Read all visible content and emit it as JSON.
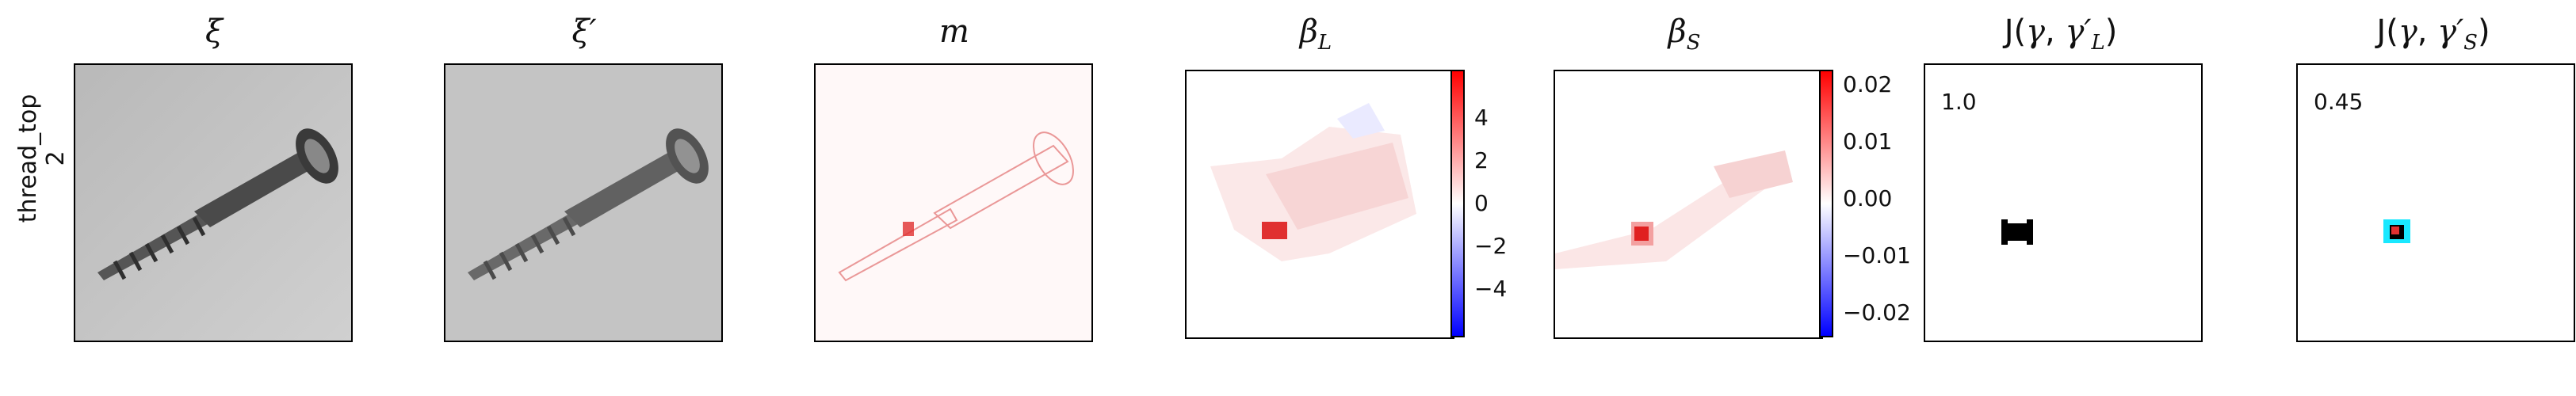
{
  "row_label": {
    "line1": "thread_top",
    "line2": "2"
  },
  "panels": [
    {
      "title": "ξ"
    },
    {
      "title": "ξ′"
    },
    {
      "title": "m"
    },
    {
      "title": "β_L",
      "colorbar": {
        "ticks": [
          "4",
          "2",
          "0",
          "−2",
          "−4"
        ],
        "range": [
          -5.8,
          5.8
        ]
      }
    },
    {
      "title": "β_S",
      "colorbar": {
        "ticks": [
          "0.02",
          "0.01",
          "0.00",
          "−0.01",
          "−0.02"
        ],
        "range": [
          -0.024,
          0.024
        ]
      }
    },
    {
      "title": "J(γ, γ′_L)",
      "overlay": "1.0"
    },
    {
      "title": "J(γ, γ′_S)",
      "overlay": "0.45"
    }
  ],
  "colors": {
    "positive": "#e03030",
    "negative": "#2a2af0",
    "neutral": "#ffffff",
    "image_bg": "#c9c9c9",
    "highlight": "#00e5ff"
  }
}
